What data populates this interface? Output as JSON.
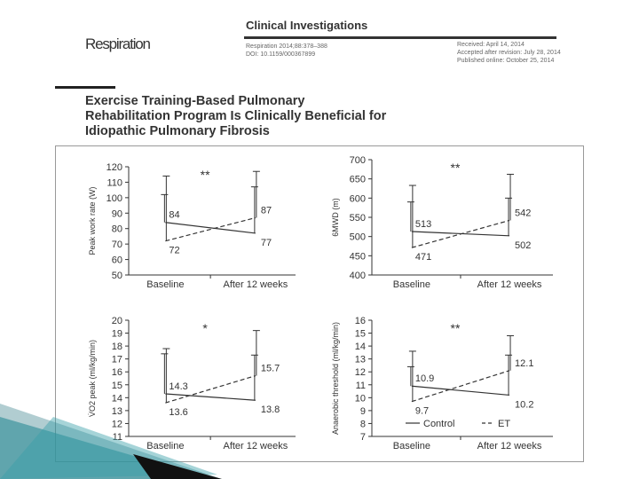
{
  "header": {
    "journal": "Respiration",
    "section": "Clinical Investigations",
    "meta_left": [
      "Respiration 2014;88:378–388",
      "DOI: 10.1159/000367899"
    ],
    "meta_right": [
      "Received: April 14, 2014",
      "Accepted after revision: July 28, 2014",
      "Published online: October 25, 2014"
    ]
  },
  "article": {
    "title_lines": [
      "Exercise Training-Based Pulmonary",
      "Rehabilitation Program Is Clinically Beneficial for",
      "Idiopathic Pulmonary Fibrosis"
    ]
  },
  "legend": {
    "entries": [
      {
        "label": "Control",
        "style": "solid"
      },
      {
        "label": "ET",
        "style": "dashed"
      }
    ],
    "placement": "bottom of lower-right panel"
  },
  "chart_data": [
    {
      "type": "line",
      "categories": [
        "Baseline",
        "After 12 weeks"
      ],
      "ylabel": "Peak work rate (W)",
      "ylim": [
        50,
        120
      ],
      "yticks": [
        50,
        60,
        70,
        80,
        90,
        100,
        110,
        120
      ],
      "significance": "**",
      "series": [
        {
          "name": "Control",
          "values": [
            84,
            77
          ],
          "labels": [
            "84",
            "77"
          ],
          "error_top": [
            102,
            107
          ],
          "line": "solid"
        },
        {
          "name": "ET",
          "values": [
            72,
            87
          ],
          "labels": [
            "72",
            "87"
          ],
          "error_top": [
            114,
            117
          ],
          "line": "dashed"
        }
      ]
    },
    {
      "type": "line",
      "categories": [
        "Baseline",
        "After 12 weeks"
      ],
      "ylabel": "6MWD (m)",
      "ylim": [
        400,
        700
      ],
      "yticks": [
        400,
        450,
        500,
        550,
        600,
        650,
        700
      ],
      "significance": "**",
      "series": [
        {
          "name": "Control",
          "values": [
            513,
            502
          ],
          "labels": [
            "513",
            "502"
          ],
          "error_top": [
            590,
            600
          ],
          "line": "solid"
        },
        {
          "name": "ET",
          "values": [
            471,
            542
          ],
          "labels": [
            "471",
            "542"
          ],
          "error_top": [
            633,
            662
          ],
          "line": "dashed"
        }
      ]
    },
    {
      "type": "line",
      "categories": [
        "Baseline",
        "After 12 weeks"
      ],
      "ylabel": "V̇O2 peak (ml/kg/min)",
      "ylim": [
        11,
        20
      ],
      "yticks": [
        11,
        12,
        13,
        14,
        15,
        16,
        17,
        18,
        19,
        20
      ],
      "significance": "*",
      "series": [
        {
          "name": "Control",
          "values": [
            14.3,
            13.8
          ],
          "labels": [
            "14.3",
            "13.8"
          ],
          "error_top": [
            17.4,
            17.3
          ],
          "line": "solid"
        },
        {
          "name": "ET",
          "values": [
            13.6,
            15.7
          ],
          "labels": [
            "13.6",
            "15.7"
          ],
          "error_top": [
            17.8,
            19.2
          ],
          "line": "dashed"
        }
      ]
    },
    {
      "type": "line",
      "categories": [
        "Baseline",
        "After 12 weeks"
      ],
      "ylabel": "Anaerobic threshold (ml/kg/min)",
      "ylim": [
        7,
        16
      ],
      "yticks": [
        7,
        8,
        9,
        10,
        11,
        12,
        13,
        14,
        15,
        16
      ],
      "significance": "**",
      "series": [
        {
          "name": "Control",
          "values": [
            10.9,
            10.2
          ],
          "labels": [
            "10.9",
            "10.2"
          ],
          "error_top": [
            12.4,
            13.3
          ],
          "line": "solid"
        },
        {
          "name": "ET",
          "values": [
            9.7,
            12.1
          ],
          "labels": [
            "9.7",
            "12.1"
          ],
          "error_top": [
            13.6,
            14.8
          ],
          "line": "dashed"
        }
      ]
    }
  ],
  "colors": {
    "ink": "#333333",
    "slide_teal": "#1f6f7a",
    "slide_black": "#111111"
  }
}
